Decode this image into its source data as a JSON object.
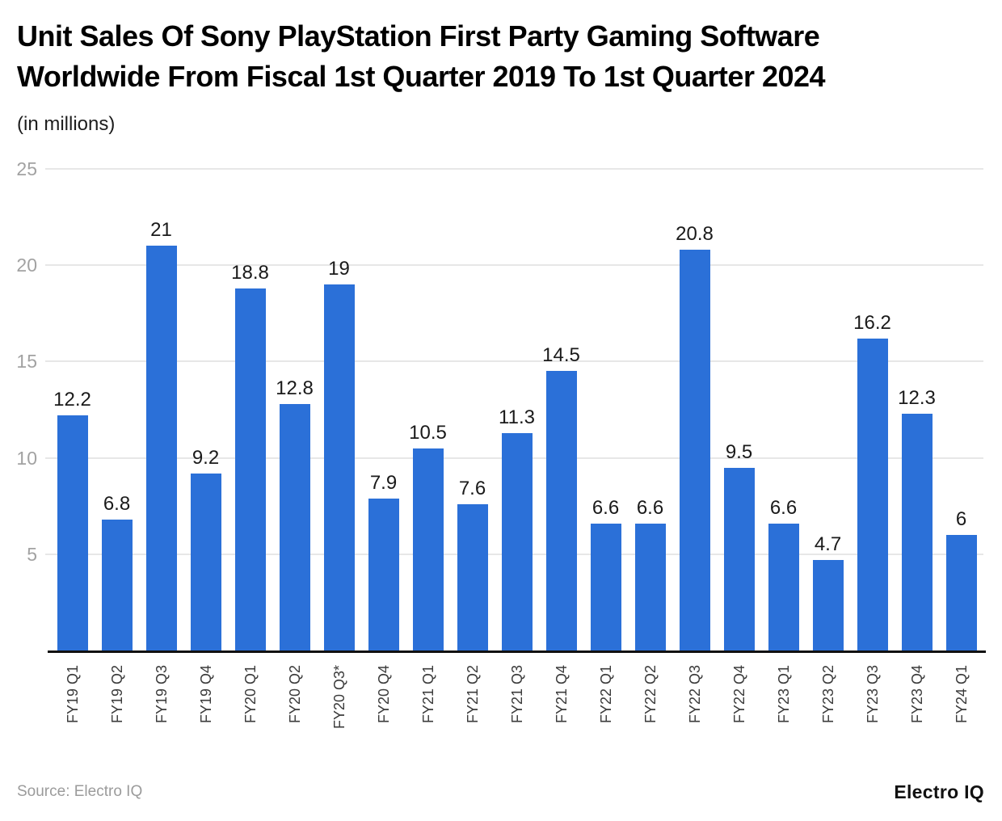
{
  "header": {
    "title_line1": "Unit Sales Of Sony PlayStation First Party Gaming Software",
    "title_line2": "Worldwide From Fiscal 1st Quarter 2019 To 1st Quarter 2024",
    "subtitle": "(in millions)"
  },
  "chart_data": {
    "type": "bar",
    "title": "Unit Sales Of Sony PlayStation First Party Gaming Software Worldwide From Fiscal 1st Quarter 2019 To 1st Quarter 2024",
    "subtitle": "(in millions)",
    "categories": [
      "FY19 Q1",
      "FY19 Q2",
      "FY19 Q3",
      "FY19 Q4",
      "FY20 Q1",
      "FY20 Q2",
      "FY20 Q3*",
      "FY20 Q4",
      "FY21 Q1",
      "FY21 Q2",
      "FY21 Q3",
      "FY21 Q4",
      "FY22 Q1",
      "FY22 Q2",
      "FY22 Q3",
      "FY22 Q4",
      "FY23 Q1",
      "FY23 Q2",
      "FY23 Q3",
      "FY23 Q4",
      "FY24 Q1"
    ],
    "values": [
      12.2,
      6.8,
      21,
      9.2,
      18.8,
      12.8,
      19,
      7.9,
      10.5,
      7.6,
      11.3,
      14.5,
      6.6,
      6.6,
      20.8,
      9.5,
      6.6,
      4.7,
      16.2,
      12.3,
      6
    ],
    "xlabel": "",
    "ylabel": "",
    "ylim": [
      0,
      25
    ],
    "yticks": [
      5,
      10,
      15,
      20,
      25
    ],
    "grid": true,
    "legend": false,
    "value_labels_shown": true
  },
  "footer": {
    "source": "Source: Electro IQ",
    "brand": "Electro IQ"
  },
  "colors": {
    "bar": "#2b70d8",
    "gridline": "#e7e7e7",
    "axis_line": "#111111",
    "y_tick_text": "#a2a2a2",
    "x_tick_text": "#3b3b3b",
    "value_text": "#1a1a1a",
    "source_text": "#9b9b9b"
  }
}
